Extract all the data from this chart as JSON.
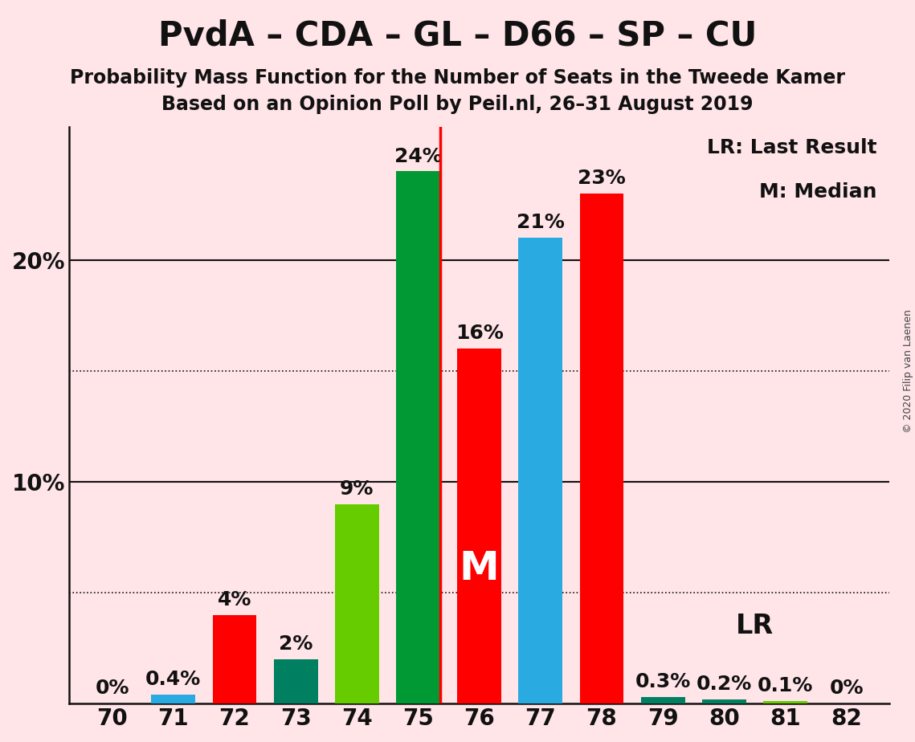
{
  "title": "PvdA – CDA – GL – D66 – SP – CU",
  "subtitle1": "Probability Mass Function for the Number of Seats in the Tweede Kamer",
  "subtitle2": "Based on an Opinion Poll by Peil.nl, 26–31 August 2019",
  "copyright": "© 2020 Filip van Laenen",
  "seats": [
    70,
    71,
    72,
    73,
    74,
    75,
    76,
    77,
    78,
    79,
    80,
    81,
    82
  ],
  "values": [
    0.0,
    0.4,
    4.0,
    2.0,
    9.0,
    24.0,
    16.0,
    21.0,
    23.0,
    0.3,
    0.2,
    0.1,
    0.0
  ],
  "bar_colors": [
    "#29ABE2",
    "#29ABE2",
    "#FF0000",
    "#008060",
    "#66CC00",
    "#009933",
    "#FF0000",
    "#29ABE2",
    "#FF0000",
    "#008060",
    "#008060",
    "#66CC00",
    "#66CC00"
  ],
  "background_color": "#FFE4E8",
  "lr_seat": 75,
  "median_seat": 76,
  "lr_line_color": "#FF0000",
  "legend_text1": "LR: Last Result",
  "legend_text2": "M: Median",
  "lr_label": "LR",
  "median_label": "M",
  "ylim": [
    0,
    26
  ],
  "solid_gridlines": [
    10.0,
    20.0
  ],
  "dotted_gridlines": [
    5.0,
    15.0
  ],
  "title_fontsize": 30,
  "subtitle_fontsize": 17,
  "tick_fontsize": 20,
  "bar_label_fontsize": 18,
  "median_fontsize": 36,
  "legend_fontsize": 18,
  "lr_label_fontsize": 24,
  "bar_width": 0.72
}
